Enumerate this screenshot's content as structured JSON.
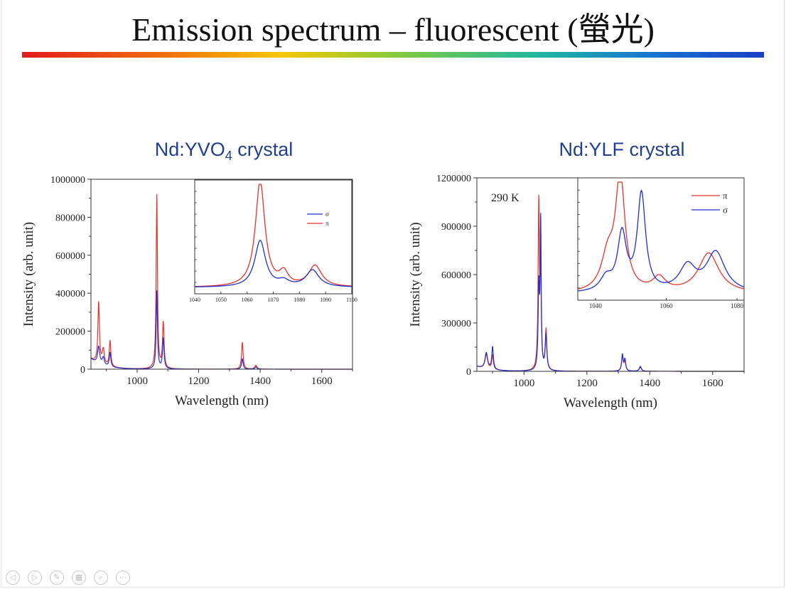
{
  "slide": {
    "title": "Emission spectrum – fluorescent (螢光)"
  },
  "controls": [
    {
      "name": "prev-slide-icon",
      "glyph": "◁"
    },
    {
      "name": "next-slide-icon",
      "glyph": "▷"
    },
    {
      "name": "pen-icon",
      "glyph": "✎"
    },
    {
      "name": "slides-grid-icon",
      "glyph": "▦"
    },
    {
      "name": "zoom-icon",
      "glyph": "⌕"
    },
    {
      "name": "more-options-icon",
      "glyph": "⋯"
    }
  ],
  "chart_data": [
    {
      "type": "line",
      "title_main": "Nd:YVO",
      "title_sub": "4",
      "title_rest": " crystal",
      "xlabel": "Wavelength (nm)",
      "ylabel": "Intensity (arb. unit)",
      "xlim": [
        850,
        1700
      ],
      "ylim": [
        0,
        1000000
      ],
      "x_ticks": [
        1000,
        1200,
        1400,
        1600
      ],
      "y_ticks": [
        0,
        200000,
        400000,
        600000,
        800000,
        1000000
      ],
      "grid": false,
      "series": [
        {
          "color": "#e8312b",
          "peaks": [
            [
              875,
              320000,
              3
            ],
            [
              890,
              80000,
              4
            ],
            [
              912,
              135000,
              3
            ],
            [
              1064,
              915000,
              2.5
            ],
            [
              1085,
              240000,
              3
            ],
            [
              1342,
              140000,
              3
            ],
            [
              1386,
              20000,
              4
            ]
          ]
        },
        {
          "color": "#1f2fd0",
          "peaks": [
            [
              875,
              90000,
              4
            ],
            [
              890,
              40000,
              4
            ],
            [
              912,
              75000,
              3
            ],
            [
              1064,
              410000,
              2.5
            ],
            [
              1085,
              160000,
              3
            ],
            [
              1342,
              55000,
              3
            ],
            [
              1386,
              12000,
              4
            ]
          ]
        }
      ],
      "inset": {
        "xlim": [
          1040,
          1100
        ],
        "x_ticks": [
          1040,
          1050,
          1060,
          1070,
          1080,
          1090,
          1100
        ],
        "legend": [
          {
            "label": "σ",
            "color": "#1f2fd0"
          },
          {
            "label": "π",
            "color": "#e8312b"
          }
        ],
        "legend_position": "right",
        "series": [
          {
            "color": "#e8312b",
            "peaks": [
              [
                1065,
                1.0,
                2.2
              ],
              [
                1074,
                0.12,
                2.0
              ],
              [
                1086,
                0.2,
                3.0
              ]
            ]
          },
          {
            "color": "#1f2fd0",
            "peaks": [
              [
                1065,
                0.44,
                2.5
              ],
              [
                1074,
                0.05,
                2.5
              ],
              [
                1085,
                0.16,
                3.0
              ]
            ]
          }
        ]
      }
    },
    {
      "type": "line",
      "title_main": "Nd:YLF crystal",
      "annotation": "290 K",
      "xlabel": "Wavelength (nm)",
      "ylabel": "Intensity (arb. unit)",
      "xlim": [
        850,
        1700
      ],
      "ylim": [
        0,
        1200000
      ],
      "x_ticks": [
        1000,
        1200,
        1400,
        1600
      ],
      "y_ticks": [
        0,
        300000,
        600000,
        900000,
        1200000
      ],
      "grid": false,
      "series": [
        {
          "color": "#e8312b",
          "peaks": [
            [
              880,
              90000,
              5
            ],
            [
              900,
              90000,
              3
            ],
            [
              1047,
              1030000,
              2.5
            ],
            [
              1053,
              580000,
              2
            ],
            [
              1070,
              250000,
              3
            ],
            [
              1313,
              90000,
              3
            ],
            [
              1321,
              60000,
              3
            ],
            [
              1370,
              25000,
              4
            ]
          ]
        },
        {
          "color": "#1f2fd0",
          "peaks": [
            [
              880,
              100000,
              5
            ],
            [
              900,
              140000,
              3
            ],
            [
              1047,
              500000,
              2.5
            ],
            [
              1053,
              900000,
              2
            ],
            [
              1070,
              220000,
              3
            ],
            [
              1313,
              100000,
              3
            ],
            [
              1321,
              70000,
              3
            ],
            [
              1370,
              30000,
              4
            ]
          ]
        }
      ],
      "inset": {
        "xlim": [
          1035,
          1082
        ],
        "x_ticks": [
          1040,
          1060,
          1080
        ],
        "legend": [
          {
            "label": "π",
            "color": "#e8312b"
          },
          {
            "label": "σ",
            "color": "#1f2fd0"
          }
        ],
        "legend_position": "top-right",
        "series": [
          {
            "color": "#e8312b",
            "peaks": [
              [
                1047,
                1.0,
                1.6
              ],
              [
                1043.5,
                0.3,
                2.2
              ],
              [
                1058,
                0.12,
                2.2
              ],
              [
                1072,
                0.35,
                3.5
              ]
            ]
          },
          {
            "color": "#1f2fd0",
            "peaks": [
              [
                1047.5,
                0.5,
                1.5
              ],
              [
                1043,
                0.12,
                2.0
              ],
              [
                1053,
                0.85,
                1.4
              ],
              [
                1066,
                0.22,
                2.8
              ],
              [
                1074,
                0.35,
                3.2
              ]
            ]
          }
        ]
      }
    }
  ]
}
